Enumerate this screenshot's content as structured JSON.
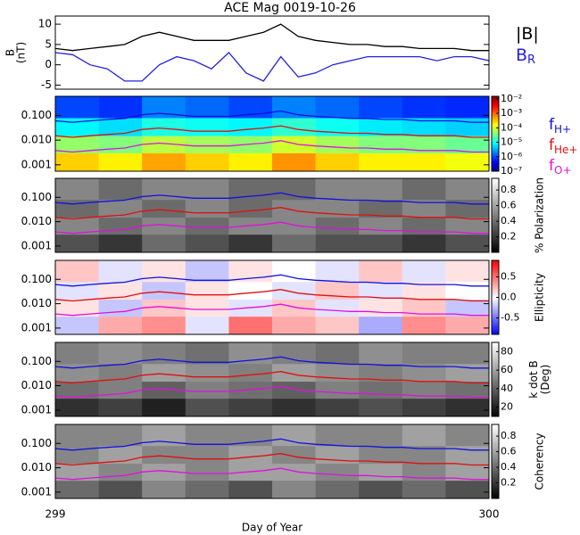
{
  "chart_data": [
    {
      "type": "line",
      "title": "ACE Mag 0019-10-26",
      "ylabel": [
        "B",
        "(nT)"
      ],
      "x": [
        299.0,
        299.04,
        299.08,
        299.12,
        299.16,
        299.2,
        299.24,
        299.28,
        299.32,
        299.36,
        299.4,
        299.44,
        299.48,
        299.52,
        299.56,
        299.6,
        299.64,
        299.68,
        299.72,
        299.76,
        299.8,
        299.84,
        299.88,
        299.92,
        299.96,
        300.0
      ],
      "xlim": [
        299,
        300
      ],
      "ylim": [
        -6,
        12
      ],
      "yticks": [
        -5,
        0,
        5,
        10
      ],
      "series": [
        {
          "name": "|B|",
          "color": "#000000",
          "values": [
            4,
            3.5,
            4,
            4.5,
            5,
            7,
            8,
            7,
            6,
            6,
            6,
            7,
            8,
            10,
            7,
            6,
            5.5,
            5,
            5,
            4.5,
            4.5,
            4,
            4,
            4,
            3.5,
            3.5
          ]
        },
        {
          "name": "B",
          "subscript": "R",
          "color": "#2222dd",
          "values": [
            3,
            2.5,
            0,
            -1,
            -4,
            -4,
            0,
            2,
            1,
            -1,
            3,
            -2,
            -4,
            2,
            -3,
            -2,
            0,
            1,
            2,
            2,
            2,
            2,
            1,
            2,
            2,
            1
          ]
        }
      ]
    },
    {
      "type": "heatmap",
      "xlim": [
        299,
        300
      ],
      "ylim": [
        0.00055,
        0.6
      ],
      "log_y": true,
      "yticks": [
        {
          "value": 0.1,
          "label": "0.100"
        },
        {
          "value": 0.01,
          "label": "0.010"
        },
        {
          "value": 0.001,
          "label": "0.001"
        }
      ],
      "x_edges": [
        299.0,
        299.1,
        299.2,
        299.3,
        299.4,
        299.5,
        299.6,
        299.7,
        299.8,
        299.9,
        300.0
      ],
      "y_edges": [
        0.00055,
        0.003,
        0.015,
        0.08,
        0.6
      ],
      "z": [
        [
          0.0003,
          0.0002,
          0.0005,
          0.0003,
          0.0002,
          0.0006,
          0.0003,
          0.0002,
          0.0002,
          0.00015
        ],
        [
          5e-05,
          4e-05,
          8e-05,
          6e-05,
          5e-05,
          0.0001,
          6e-05,
          4e-05,
          4e-05,
          3e-05
        ],
        [
          8e-06,
          6e-06,
          1.2e-05,
          1e-05,
          8e-06,
          1.5e-05,
          1e-05,
          7e-06,
          6e-06,
          5e-06
        ],
        [
          1e-06,
          8e-07,
          2e-06,
          1.5e-06,
          1e-06,
          2e-06,
          1.5e-06,
          1e-06,
          8e-07,
          7e-07
        ]
      ],
      "colormap": "rainbow",
      "clim": [
        1e-07,
        0.015
      ],
      "clog": true,
      "cticks": [
        {
          "value": 0.01,
          "label": "10⁻²"
        },
        {
          "value": 0.001,
          "label": "10⁻³"
        },
        {
          "value": 0.0001,
          "label": "10⁻⁴"
        },
        {
          "value": 1e-05,
          "label": "10⁻⁵"
        },
        {
          "value": 1e-06,
          "label": "10⁻⁶"
        },
        {
          "value": 1e-07,
          "label": "10⁻⁷"
        }
      ],
      "series": [
        {
          "name": "f",
          "subscript": "H+",
          "color": "#1010e0",
          "values": [
            0.061,
            0.053,
            0.061,
            0.069,
            0.076,
            0.107,
            0.122,
            0.107,
            0.092,
            0.092,
            0.092,
            0.107,
            0.122,
            0.152,
            0.107,
            0.092,
            0.084,
            0.076,
            0.076,
            0.069,
            0.069,
            0.061,
            0.061,
            0.061,
            0.053,
            0.053
          ]
        },
        {
          "name": "f",
          "subscript": "He+",
          "color": "#e01010",
          "values": [
            0.015,
            0.013,
            0.015,
            0.017,
            0.019,
            0.027,
            0.031,
            0.027,
            0.023,
            0.023,
            0.023,
            0.027,
            0.031,
            0.038,
            0.027,
            0.023,
            0.021,
            0.019,
            0.019,
            0.017,
            0.017,
            0.015,
            0.015,
            0.015,
            0.013,
            0.013
          ]
        },
        {
          "name": "f",
          "subscript": "O+",
          "color": "#e010e0",
          "values": [
            0.0038,
            0.0033,
            0.0038,
            0.0043,
            0.0048,
            0.0067,
            0.0076,
            0.0067,
            0.0058,
            0.0058,
            0.0058,
            0.0067,
            0.0076,
            0.0095,
            0.0067,
            0.0058,
            0.0053,
            0.0048,
            0.0048,
            0.0043,
            0.0043,
            0.0038,
            0.0038,
            0.0038,
            0.0033,
            0.0033
          ]
        }
      ]
    },
    {
      "type": "heatmap",
      "xlim": [
        299,
        300
      ],
      "ylim": [
        0.00055,
        0.6
      ],
      "log_y": true,
      "yticks": [
        {
          "value": 0.1,
          "label": "0.100"
        },
        {
          "value": 0.01,
          "label": "0.010"
        },
        {
          "value": 0.001,
          "label": "0.001"
        }
      ],
      "x_edges": [
        299.0,
        299.1,
        299.2,
        299.3,
        299.4,
        299.5,
        299.6,
        299.7,
        299.8,
        299.9,
        300.0
      ],
      "y_edges": [
        0.00055,
        0.003,
        0.015,
        0.08,
        0.6
      ],
      "z": [
        [
          0.3,
          0.2,
          0.4,
          0.3,
          0.2,
          0.4,
          0.3,
          0.3,
          0.2,
          0.3
        ],
        [
          0.5,
          0.4,
          0.5,
          0.4,
          0.5,
          0.5,
          0.4,
          0.5,
          0.4,
          0.5
        ],
        [
          0.4,
          0.5,
          0.4,
          0.5,
          0.4,
          0.5,
          0.5,
          0.4,
          0.5,
          0.4
        ],
        [
          0.5,
          0.4,
          0.5,
          0.5,
          0.4,
          0.4,
          0.5,
          0.5,
          0.4,
          0.5
        ]
      ],
      "colormap": "gray",
      "clim": [
        0,
        0.95
      ],
      "cticks": [
        0.2,
        0.4,
        0.6,
        0.8
      ],
      "clabel": [
        "% Polarization"
      ]
    },
    {
      "type": "heatmap",
      "xlim": [
        299,
        300
      ],
      "ylim": [
        0.00055,
        0.6
      ],
      "log_y": true,
      "yticks": [
        {
          "value": 0.1,
          "label": "0.100"
        },
        {
          "value": 0.01,
          "label": "0.010"
        },
        {
          "value": 0.001,
          "label": "0.001"
        }
      ],
      "x_edges": [
        299.0,
        299.1,
        299.2,
        299.3,
        299.4,
        299.5,
        299.6,
        299.7,
        299.8,
        299.9,
        300.0
      ],
      "y_edges": [
        0.00055,
        0.003,
        0.015,
        0.08,
        0.6
      ],
      "z": [
        [
          -0.2,
          0.3,
          0.4,
          -0.1,
          0.5,
          0.3,
          0.2,
          -0.3,
          0.4,
          0.3
        ],
        [
          0.1,
          -0.2,
          0.2,
          0.1,
          -0.1,
          0.2,
          -0.1,
          0.1,
          0.2,
          -0.2
        ],
        [
          -0.1,
          0.1,
          -0.2,
          0.1,
          0.0,
          -0.1,
          0.2,
          -0.1,
          0.1,
          0.0
        ],
        [
          0.2,
          -0.1,
          0.1,
          -0.2,
          0.1,
          0.0,
          -0.1,
          0.2,
          -0.1,
          0.1
        ]
      ],
      "colormap": "bwr",
      "clim": [
        -0.9,
        0.9
      ],
      "cticks": [
        0.5,
        {
          "value": 0,
          "label": "0.0"
        },
        -0.5
      ],
      "clabel": [
        "Ellipticity"
      ]
    },
    {
      "type": "heatmap",
      "xlim": [
        299,
        300
      ],
      "ylim": [
        0.00055,
        0.6
      ],
      "log_y": true,
      "yticks": [
        {
          "value": 0.1,
          "label": "0.100"
        },
        {
          "value": 0.01,
          "label": "0.010"
        },
        {
          "value": 0.001,
          "label": "0.001"
        }
      ],
      "x_edges": [
        299.0,
        299.1,
        299.2,
        299.3,
        299.4,
        299.5,
        299.6,
        299.7,
        299.8,
        299.9,
        300.0
      ],
      "y_edges": [
        0.00055,
        0.003,
        0.015,
        0.08,
        0.6
      ],
      "z": [
        [
          25,
          30,
          20,
          35,
          30,
          25,
          30,
          35,
          30,
          25
        ],
        [
          45,
          50,
          40,
          50,
          45,
          40,
          50,
          45,
          50,
          45
        ],
        [
          55,
          50,
          60,
          55,
          50,
          60,
          55,
          50,
          55,
          60
        ],
        [
          50,
          55,
          50,
          45,
          55,
          50,
          45,
          55,
          50,
          50
        ]
      ],
      "colormap": "gray",
      "clim": [
        10,
        90
      ],
      "cticks": [
        20,
        40,
        60,
        80
      ],
      "clabel": [
        "k dot B",
        "(Deg)"
      ]
    },
    {
      "type": "heatmap",
      "xlim": [
        299,
        300
      ],
      "ylim": [
        0.00055,
        0.6
      ],
      "log_y": true,
      "yticks": [
        {
          "value": 0.1,
          "label": "0.100"
        },
        {
          "value": 0.01,
          "label": "0.010"
        },
        {
          "value": 0.001,
          "label": "0.001"
        }
      ],
      "x_edges": [
        299.0,
        299.1,
        299.2,
        299.3,
        299.4,
        299.5,
        299.6,
        299.7,
        299.8,
        299.9,
        300.0
      ],
      "y_edges": [
        0.00055,
        0.003,
        0.015,
        0.08,
        0.6
      ],
      "z": [
        [
          0.4,
          0.3,
          0.5,
          0.4,
          0.3,
          0.5,
          0.4,
          0.3,
          0.4,
          0.3
        ],
        [
          0.6,
          0.5,
          0.6,
          0.5,
          0.6,
          0.6,
          0.5,
          0.6,
          0.5,
          0.6
        ],
        [
          0.5,
          0.6,
          0.5,
          0.5,
          0.6,
          0.5,
          0.6,
          0.5,
          0.5,
          0.6
        ],
        [
          0.5,
          0.5,
          0.6,
          0.5,
          0.5,
          0.6,
          0.5,
          0.5,
          0.6,
          0.5
        ]
      ],
      "colormap": "gray",
      "clim": [
        0,
        0.95
      ],
      "cticks": [
        0.2,
        0.4,
        0.6,
        0.8
      ],
      "clabel": [
        "Coherency"
      ],
      "xticks": [
        299,
        300
      ],
      "xlabel": "Day of Year"
    }
  ]
}
